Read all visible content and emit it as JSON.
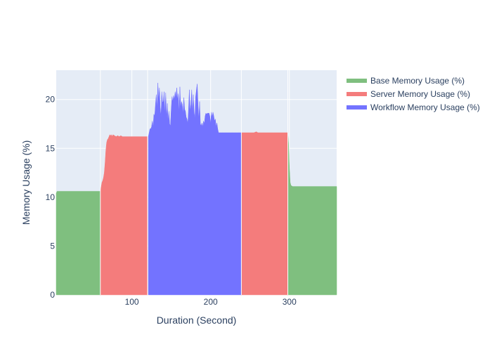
{
  "chart_data": {
    "type": "area",
    "xlabel": "Duration (Second)",
    "ylabel": "Memory Usage (%)",
    "xlim": [
      4,
      360
    ],
    "ylim": [
      0,
      23
    ],
    "x_ticks": [
      100,
      200,
      300
    ],
    "y_ticks": [
      0,
      5,
      10,
      15,
      20
    ],
    "grid": true,
    "legend_position": "top-right",
    "background_color": "#e5ecf6",
    "series": [
      {
        "name": "Base Memory Usage (%)",
        "color": "#7fbf7f",
        "segments": [
          {
            "x": [
              4,
              5,
              60
            ],
            "y": [
              10.4,
              10.6,
              10.6
            ]
          },
          {
            "x": [
              298,
              299,
              300,
              301,
              302,
              304,
              310,
              360
            ],
            "y": [
              16.6,
              15.5,
              13,
              11.5,
              11.2,
              11.1,
              11.1,
              11.1
            ]
          }
        ]
      },
      {
        "name": "Server Memory Usage (%)",
        "color": "#f47c7c",
        "segments": [
          {
            "x": [
              60,
              61,
              62,
              63,
              64,
              65,
              66,
              67,
              68,
              69,
              70,
              71,
              72,
              73,
              74,
              75,
              76,
              78,
              80,
              82,
              84,
              86,
              88,
              90,
              95,
              100,
              110,
              120
            ],
            "y": [
              10.6,
              11.0,
              11.5,
              11.7,
              12.0,
              12.5,
              13.5,
              14.8,
              15.6,
              15.9,
              16.0,
              16.2,
              16.4,
              16.3,
              16.4,
              16.2,
              16.4,
              16.3,
              16.2,
              16.3,
              16.2,
              16.3,
              16.2,
              16.2,
              16.2,
              16.2,
              16.2,
              16.2
            ]
          },
          {
            "x": [
              239,
              240,
              245,
              250,
              255,
              258,
              260,
              262,
              265,
              270,
              280,
              290,
              297,
              298
            ],
            "y": [
              16.6,
              16.6,
              16.6,
              16.6,
              16.6,
              16.7,
              16.6,
              16.6,
              16.6,
              16.6,
              16.6,
              16.6,
              16.6,
              16.6
            ]
          }
        ]
      },
      {
        "name": "Workflow Memory Usage (%)",
        "color": "#7373ff",
        "segments": [
          {
            "x": [
              121,
              122,
              123,
              124,
              125,
              126,
              127,
              128,
              129,
              130,
              131,
              132,
              133,
              134,
              135,
              136,
              137,
              138,
              139,
              140,
              141,
              142,
              143,
              144,
              145,
              146,
              147,
              148,
              149,
              150,
              151,
              152,
              153,
              154,
              155,
              156,
              157,
              158,
              159,
              160,
              161,
              162,
              163,
              164,
              165,
              166,
              167,
              168,
              169,
              170,
              171,
              172,
              173,
              174,
              175,
              176,
              177,
              178,
              179,
              180,
              181,
              182,
              183,
              184,
              185,
              186,
              187,
              188,
              189,
              190,
              191,
              192,
              193,
              194,
              195,
              196,
              197,
              198,
              199,
              200,
              201,
              202,
              203,
              204,
              205,
              206,
              207,
              208,
              209,
              210,
              211,
              212,
              213,
              214,
              215,
              216,
              217,
              218,
              219,
              220,
              221,
              222,
              223,
              224,
              225,
              226,
              227,
              228,
              229,
              230,
              231,
              232,
              233,
              234,
              235,
              236,
              237,
              238,
              239
            ],
            "y": [
              16.2,
              16.6,
              17.0,
              17.0,
              17.2,
              17.8,
              17.2,
              18.5,
              18.3,
              19.5,
              20.5,
              19.0,
              21.7,
              20.0,
              21.2,
              19.2,
              18.2,
              20.8,
              19.7,
              19.8,
              20.8,
              18.5,
              20.7,
              18.0,
              19.6,
              17.8,
              18.8,
              17.5,
              17.3,
              19.0,
              20.3,
              19.8,
              20.4,
              20.0,
              20.8,
              20.2,
              21.2,
              20.0,
              20.6,
              18.6,
              21.3,
              19.2,
              19.8,
              19.5,
              18.5,
              20.2,
              19.0,
              18.8,
              18.2,
              18.0,
              17.5,
              19.0,
              21.0,
              18.8,
              19.5,
              21.0,
              18.5,
              20.5,
              18.8,
              18.0,
              20.3,
              21.0,
              21.6,
              19.5,
              18.0,
              19.8,
              17.5,
              17.3,
              17.6,
              17.2,
              17.8,
              17.5,
              18.3,
              18.6,
              18.5,
              18.6,
              18.6,
              18.6,
              18.3,
              17.5,
              18.7,
              18.2,
              18.7,
              18.3,
              17.8,
              18.0,
              17.2,
              17.6,
              17.0,
              16.6,
              16.6,
              16.6,
              16.6,
              16.6,
              16.6,
              16.6,
              16.6,
              16.6,
              16.6,
              16.6,
              16.6,
              16.6,
              16.6,
              16.6,
              16.6,
              16.6,
              16.6,
              16.6,
              16.6,
              16.6,
              16.6,
              16.6,
              16.6,
              16.6,
              16.6,
              16.6,
              16.6,
              16.6,
              16.6
            ]
          }
        ]
      }
    ]
  }
}
